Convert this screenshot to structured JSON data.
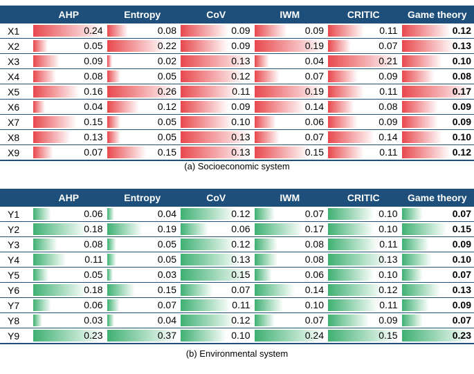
{
  "chart_data": [
    {
      "type": "table",
      "caption": "(a) Socioeconomic system",
      "headers": [
        "AHP",
        "Entropy",
        "CoV",
        "IWM",
        "CRITIC",
        "Game theory"
      ],
      "rows": [
        {
          "label": "X1",
          "values": [
            "0.24",
            "0.08",
            "0.09",
            "0.09",
            "0.11",
            "0.12"
          ]
        },
        {
          "label": "X2",
          "values": [
            "0.05",
            "0.22",
            "0.09",
            "0.19",
            "0.07",
            "0.13"
          ]
        },
        {
          "label": "X3",
          "values": [
            "0.09",
            "0.02",
            "0.13",
            "0.04",
            "0.21",
            "0.10"
          ]
        },
        {
          "label": "X4",
          "values": [
            "0.08",
            "0.05",
            "0.12",
            "0.07",
            "0.09",
            "0.08"
          ]
        },
        {
          "label": "X5",
          "values": [
            "0.16",
            "0.26",
            "0.11",
            "0.19",
            "0.11",
            "0.17"
          ]
        },
        {
          "label": "X6",
          "values": [
            "0.04",
            "0.12",
            "0.09",
            "0.14",
            "0.08",
            "0.09"
          ]
        },
        {
          "label": "X7",
          "values": [
            "0.15",
            "0.05",
            "0.10",
            "0.06",
            "0.09",
            "0.09"
          ]
        },
        {
          "label": "X8",
          "values": [
            "0.13",
            "0.05",
            "0.13",
            "0.07",
            "0.14",
            "0.10"
          ]
        },
        {
          "label": "X9",
          "values": [
            "0.07",
            "0.15",
            "0.13",
            "0.15",
            "0.11",
            "0.12"
          ]
        }
      ]
    },
    {
      "type": "table",
      "caption": "(b) Environmental system",
      "headers": [
        "AHP",
        "Entropy",
        "CoV",
        "IWM",
        "CRITIC",
        "Game theory"
      ],
      "rows": [
        {
          "label": "Y1",
          "values": [
            "0.06",
            "0.04",
            "0.12",
            "0.07",
            "0.10",
            "0.07"
          ]
        },
        {
          "label": "Y2",
          "values": [
            "0.18",
            "0.19",
            "0.06",
            "0.17",
            "0.10",
            "0.15"
          ]
        },
        {
          "label": "Y3",
          "values": [
            "0.08",
            "0.05",
            "0.12",
            "0.08",
            "0.11",
            "0.09"
          ]
        },
        {
          "label": "Y4",
          "values": [
            "0.11",
            "0.05",
            "0.13",
            "0.08",
            "0.13",
            "0.10"
          ]
        },
        {
          "label": "Y5",
          "values": [
            "0.05",
            "0.03",
            "0.15",
            "0.06",
            "0.10",
            "0.07"
          ]
        },
        {
          "label": "Y6",
          "values": [
            "0.18",
            "0.15",
            "0.07",
            "0.14",
            "0.12",
            "0.13"
          ]
        },
        {
          "label": "Y7",
          "values": [
            "0.06",
            "0.07",
            "0.11",
            "0.10",
            "0.11",
            "0.09"
          ]
        },
        {
          "label": "Y8",
          "values": [
            "0.03",
            "0.04",
            "0.12",
            "0.07",
            "0.09",
            "0.07"
          ]
        },
        {
          "label": "Y9",
          "values": [
            "0.23",
            "0.37",
            "0.10",
            "0.24",
            "0.15",
            "0.23"
          ]
        }
      ]
    }
  ],
  "colors": {
    "header_bg": "#1e4f7a",
    "panel_a_bar": "#e8484d",
    "panel_b_bar": "#3fb072",
    "row_border": "#1e4f7a"
  }
}
